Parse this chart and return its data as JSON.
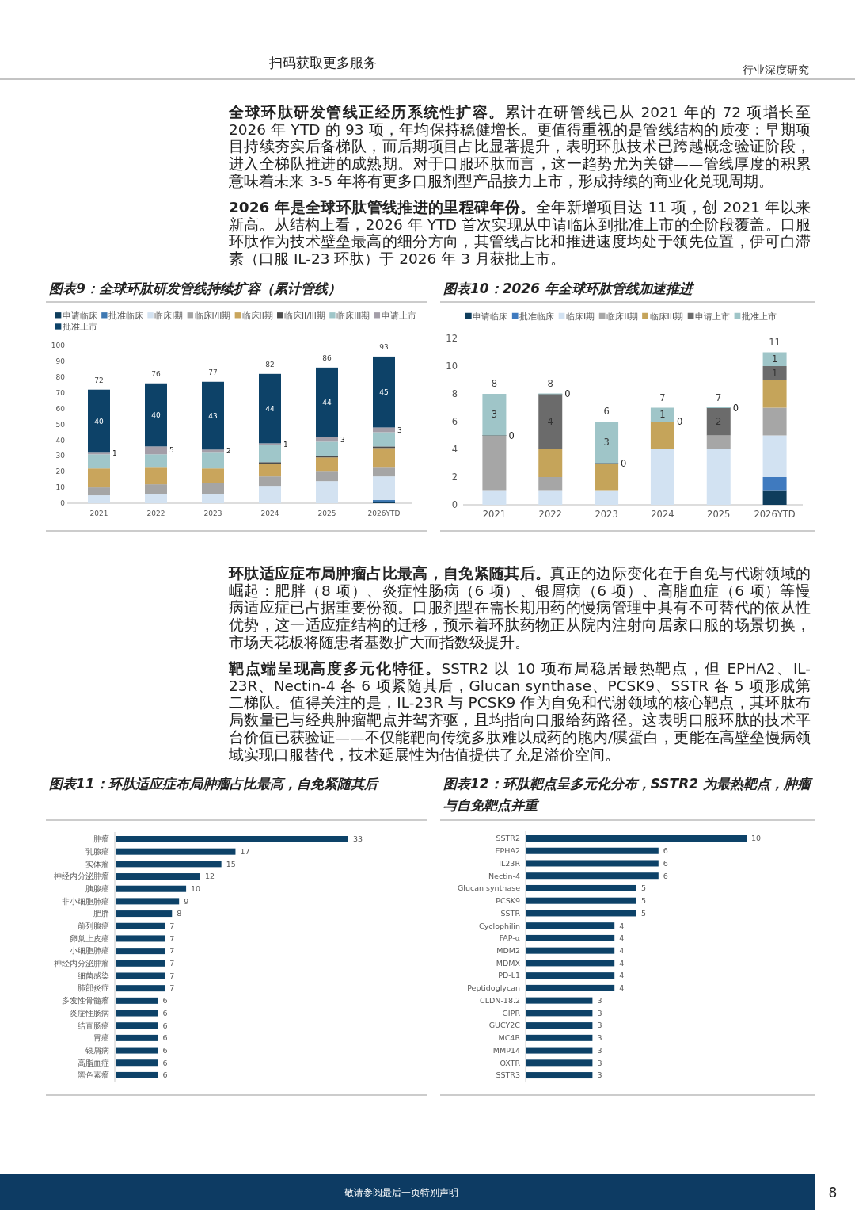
{
  "chart_data": [
    {
      "type": "other",
      "annotations": [
        "扫码获取更多服务",
        "行业深度研究",
        "**全球环肽研发管线正经历系统性扩容。**累计在研管线已从 2021 年的 72 项增长至 2026 年 YTD 的 93 项，年均保持稳健增长。更值得重视的是管线结构的质变：早期项目持续夯实后备梯队，而后期项目占比显著提升，表明环肽技术已跨越概念验证阶段，进入全梯队推进的成熟期。对于口服环肽而言，这一趋势尤为关键——管线厚度的积累意味着未来 3-5 年将有更多口服剂型产品接力上市，形成持续的商业化兑现周期。",
        "**2026 年是全球环肽管线推进的里程碑年份。**全年新增项目达 11 项，创 2021 年以来新高。从结构上看，2026 年 YTD 首次实现从申请临床到批准上市的全阶段覆盖。口服环肽作为技术壁垒最高的细分方向，其管线占比和推进速度均处于领先位置，伊可白滞素（口服 IL-23 环肽）于 2026 年 3 月获批上市。"
      ]
    },
    {
      "type": "bar",
      "title": "图表9：全球环肽研发管线持续扩容（累计管线）",
      "stacked": true,
      "legend": "top",
      "categories": [
        "2021",
        "2022",
        "2023",
        "2024",
        "2025",
        "2026YTD"
      ],
      "ylim": [
        0,
        100
      ],
      "yticks": [
        0,
        10,
        20,
        30,
        40,
        50,
        60,
        70,
        80,
        90,
        100
      ],
      "totals": [
        "72",
        "76",
        "77",
        "82",
        "86",
        "93"
      ],
      "series": [
        {
          "name": "申请临床",
          "color": "#0f3d5c",
          "values": [
            0,
            0,
            0,
            0,
            0,
            1
          ]
        },
        {
          "name": "批准临床",
          "color": "#3e78b2",
          "values": [
            0,
            0,
            0,
            0,
            0,
            1
          ]
        },
        {
          "name": "临床I期",
          "color": "#d3e2f1",
          "values": [
            5,
            6,
            6,
            11,
            14,
            15
          ]
        },
        {
          "name": "临床I/II期",
          "color": "#a5a5a5",
          "values": [
            5,
            6,
            7,
            6,
            6,
            6
          ]
        },
        {
          "name": "临床II期",
          "color": "#c9a55c",
          "values": [
            12,
            11,
            9,
            8,
            9,
            12
          ]
        },
        {
          "name": "临床II/III期",
          "color": "#4d4d4d",
          "values": [
            0,
            0,
            0,
            1,
            1,
            1
          ]
        },
        {
          "name": "临床III期",
          "color": "#9fc6c9",
          "values": [
            9,
            8,
            10,
            11,
            9,
            9
          ]
        },
        {
          "name": "申请上市",
          "color": "#a39ea8",
          "values": [
            1,
            5,
            2,
            1,
            3,
            3
          ],
          "value_labels": [
            "1",
            "5",
            "2",
            "1",
            "3",
            "3"
          ]
        },
        {
          "name": "批准上市",
          "color": "#0d4268",
          "values": [
            40,
            40,
            43,
            44,
            44,
            45
          ],
          "value_labels": [
            "40",
            "40",
            "43",
            "44",
            "44",
            "45"
          ]
        }
      ]
    },
    {
      "type": "bar",
      "title": "图表10：2026 年全球环肽管线加速推进",
      "stacked": true,
      "legend": "top",
      "categories": [
        "2021",
        "2022",
        "2023",
        "2024",
        "2025",
        "2026YTD"
      ],
      "ylim": [
        0,
        12
      ],
      "yticks": [
        0,
        2,
        4,
        6,
        8,
        10,
        12
      ],
      "totals": [
        "8",
        "8",
        "6",
        "7",
        "7",
        "11"
      ],
      "series": [
        {
          "name": "申请临床",
          "color": "#0f3d5c",
          "values": [
            0,
            0,
            0,
            0,
            0,
            1
          ]
        },
        {
          "name": "批准临床",
          "color": "#3f7abf",
          "values": [
            0,
            0,
            0,
            0,
            0,
            1
          ]
        },
        {
          "name": "临床I期",
          "color": "#d2e2f2",
          "values": [
            1,
            1,
            1,
            4,
            4,
            3
          ]
        },
        {
          "name": "临床II期",
          "color": "#a6a6a6",
          "values": [
            4,
            1,
            0,
            0,
            1,
            2
          ]
        },
        {
          "name": "临床III期",
          "color": "#c5a45a",
          "values": [
            0,
            2,
            2,
            2,
            0,
            2
          ]
        },
        {
          "name": "申请上市",
          "color": "#6b6b6b",
          "values": [
            0,
            4,
            0,
            0,
            2,
            1
          ],
          "value_labels": [
            "0",
            "4",
            "0",
            "0",
            "2",
            "1"
          ]
        },
        {
          "name": "批准上市",
          "color": "#9fc5c8",
          "values": [
            3,
            0,
            3,
            1,
            0,
            1
          ],
          "value_labels": [
            "3",
            "0",
            "3",
            "1",
            "0",
            "1"
          ]
        }
      ]
    },
    {
      "type": "other",
      "annotations": [
        "**环肽适应症布局肿瘤占比最高，自免紧随其后。**真正的边际变化在于自免与代谢领域的崛起：肥胖（8 项）、炎症性肠病（6 项）、银屑病（6 项）、高脂血症（6 项）等慢病适应症已占据重要份额。口服剂型在需长期用药的慢病管理中具有不可替代的依从性优势，这一适应症结构的迁移，预示着环肽药物正从院内注射向居家口服的场景切换，市场天花板将随患者基数扩大而指数级提升。",
        "**靶点端呈现高度多元化特征。**SSTR2 以 10 项布局稳居最热靶点，但 EPHA2、IL-23R、Nectin-4 各 6 项紧随其后，Glucan synthase、PCSK9、SSTR 各 5 项形成第二梯队。值得关注的是，IL-23R 与 PCSK9 作为自免和代谢领域的核心靶点，其环肽布局数量已与经典肿瘤靶点并驾齐驱，且均指向口服给药路径。这表明口服环肽的技术平台价值已获验证——不仅能靶向传统多肽难以成药的胞内/膜蛋白，更能在高壁垒慢病领域实现口服替代，技术延展性为估值提供了充足溢价空间。"
      ]
    },
    {
      "type": "bar",
      "title": "图表11：环肽适应症布局肿瘤占比最高，自免紧随其后",
      "orientation": "horizontal",
      "data_labels": true,
      "color": "#0d4268",
      "categories": [
        "肿瘤",
        "乳腺癌",
        "实体瘤",
        "神经内分泌肿瘤",
        "胰腺癌",
        "非小细胞肺癌",
        "肥胖",
        "前列腺癌",
        "卵巢上皮癌",
        "小细胞肺癌",
        "神经内分泌肿瘤",
        "细菌感染",
        "肺部炎症",
        "多发性骨髓瘤",
        "炎症性肠病",
        "结直肠癌",
        "胃癌",
        "银屑病",
        "高脂血症",
        "黑色素瘤"
      ],
      "values": [
        33,
        17,
        15,
        12,
        10,
        9,
        8,
        7,
        7,
        7,
        7,
        7,
        7,
        6,
        6,
        6,
        6,
        6,
        6,
        6
      ]
    },
    {
      "type": "bar",
      "title": "图表12：环肽靶点呈多元化分布，SSTR2 为最热靶点，肿瘤与自免靶点并重",
      "orientation": "horizontal",
      "data_labels": true,
      "color": "#0d4268",
      "categories": [
        "SSTR2",
        "EPHA2",
        "IL23R",
        "Nectin-4",
        "Glucan synthase",
        "PCSK9",
        "SSTR",
        "Cyclophilin",
        "FAP-α",
        "MDM2",
        "MDMX",
        "PD-L1",
        "Peptidoglycan",
        "CLDN-18.2",
        "GIPR",
        "GUCY2C",
        "MC4R",
        "MMP14",
        "OXTR",
        "SSTR3"
      ],
      "values": [
        10,
        6,
        6,
        6,
        5,
        5,
        5,
        4,
        4,
        4,
        4,
        4,
        4,
        3,
        3,
        3,
        3,
        3,
        3,
        3
      ]
    },
    {
      "type": "other",
      "annotations": [
        "敬请参阅最后一页特别声明",
        "8"
      ]
    }
  ]
}
